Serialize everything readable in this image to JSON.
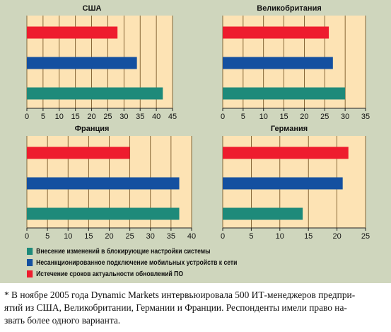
{
  "chart_data": [
    {
      "type": "bar",
      "orientation": "horizontal",
      "title": "США",
      "xlim": [
        0,
        45
      ],
      "ticks": [
        "0",
        "5",
        "10",
        "15",
        "20",
        "25",
        "30",
        "35",
        "40",
        "45"
      ],
      "series": [
        {
          "key": "expiry",
          "value": 28
        },
        {
          "key": "unsanctioned",
          "value": 34
        },
        {
          "key": "blocking",
          "value": 42
        }
      ]
    },
    {
      "type": "bar",
      "orientation": "horizontal",
      "title": "Великобритания",
      "xlim": [
        0,
        35
      ],
      "ticks": [
        "0",
        "5",
        "10",
        "15",
        "20",
        "25",
        "30",
        "35"
      ],
      "series": [
        {
          "key": "expiry",
          "value": 26
        },
        {
          "key": "unsanctioned",
          "value": 27
        },
        {
          "key": "blocking",
          "value": 30
        }
      ]
    },
    {
      "type": "bar",
      "orientation": "horizontal",
      "title": "Франция",
      "xlim": [
        0,
        40
      ],
      "ticks": [
        "0",
        "5",
        "10",
        "15",
        "20",
        "25",
        "30",
        "35",
        "40"
      ],
      "series": [
        {
          "key": "expiry",
          "value": 25
        },
        {
          "key": "unsanctioned",
          "value": 37
        },
        {
          "key": "blocking",
          "value": 37
        }
      ]
    },
    {
      "type": "bar",
      "orientation": "horizontal",
      "title": "Германия",
      "xlim": [
        0,
        25
      ],
      "ticks": [
        "0",
        "5",
        "10",
        "15",
        "20",
        "25"
      ],
      "series": [
        {
          "key": "expiry",
          "value": 22
        },
        {
          "key": "unsanctioned",
          "value": 21
        },
        {
          "key": "blocking",
          "value": 14
        }
      ]
    }
  ],
  "legend": [
    {
      "key": "blocking",
      "label": "Внесение изменений в блокирующие настройки системы",
      "color": "#1e8a7a"
    },
    {
      "key": "unsanctioned",
      "label": "Несанкционированное подключение мобильных устройств к сети",
      "color": "#1450a0"
    },
    {
      "key": "expiry",
      "label": "Истечение сроков актуальности обновлений ПО",
      "color": "#ee1c2e"
    }
  ],
  "colors": {
    "plot_background": "#fde3b4",
    "gridline": "#6b4a1a",
    "page_background": "#cfd6bd"
  },
  "footnote": {
    "line1": "* В ноябре 2005 года Dynamic Markets интервьюировала 500 ИТ-менеджеров предпри-",
    "line2": "ятий из США, Великобритании, Германии и Франции. Респонденты имели право на-",
    "line3": "звать более одного варианта."
  }
}
